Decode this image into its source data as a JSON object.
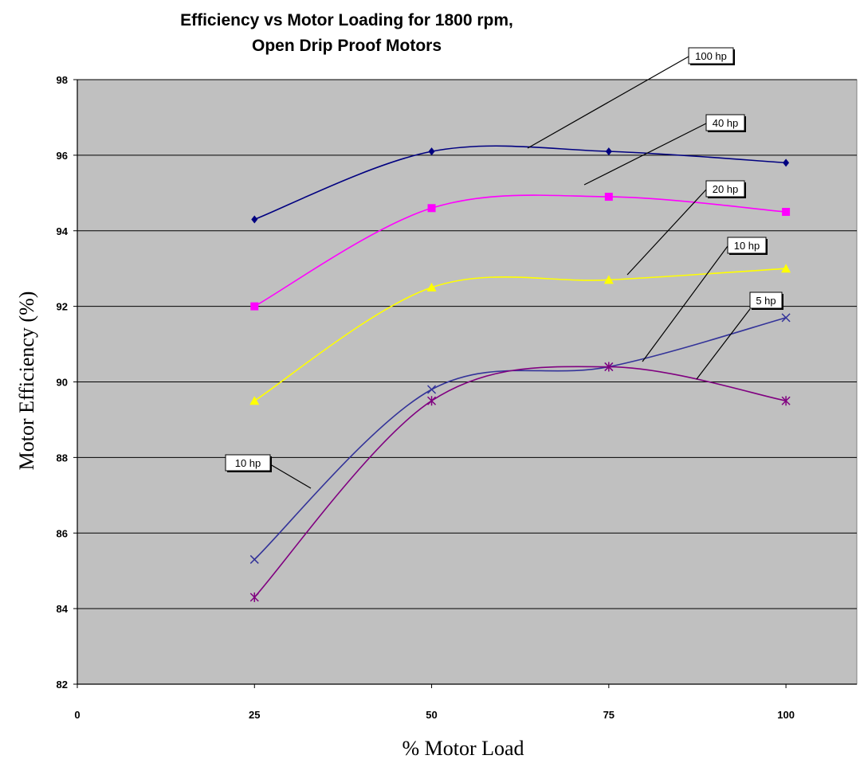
{
  "chart_data": {
    "type": "line",
    "title": "Efficiency vs Motor Loading for 1800 rpm,",
    "subtitle": "Open Drip Proof Motors",
    "xlabel": "% Motor Load",
    "ylabel": "Motor Efficiency (%)",
    "xlim": [
      0,
      110
    ],
    "ylim": [
      82,
      98
    ],
    "x_ticks": [
      0,
      25,
      50,
      75,
      100
    ],
    "y_ticks": [
      82,
      84,
      86,
      88,
      90,
      92,
      94,
      96,
      98
    ],
    "grid": true,
    "plot_background": "#c0c0c0",
    "x": [
      25,
      50,
      75,
      100
    ],
    "series": [
      {
        "name": "100 hp",
        "values": [
          94.3,
          96.1,
          96.1,
          95.8
        ],
        "color": "#000080",
        "marker": "diamond"
      },
      {
        "name": "40 hp",
        "values": [
          92.0,
          94.6,
          94.9,
          94.5
        ],
        "color": "#ff00ff",
        "marker": "square"
      },
      {
        "name": "20 hp",
        "values": [
          89.5,
          92.5,
          92.7,
          93.0
        ],
        "color": "#ffff00",
        "marker": "triangle"
      },
      {
        "name": "10 hp",
        "values": [
          85.3,
          89.8,
          90.4,
          91.7
        ],
        "color": "#333399",
        "marker": "x"
      },
      {
        "name": "5 hp",
        "values": [
          84.3,
          89.5,
          90.4,
          89.5
        ],
        "color": "#800080",
        "marker": "asterisk"
      }
    ],
    "callouts": [
      {
        "label": "100 hp"
      },
      {
        "label": "40 hp"
      },
      {
        "label": "20 hp"
      },
      {
        "label": "10 hp"
      },
      {
        "label": "5 hp"
      },
      {
        "label": "10 hp"
      }
    ]
  }
}
